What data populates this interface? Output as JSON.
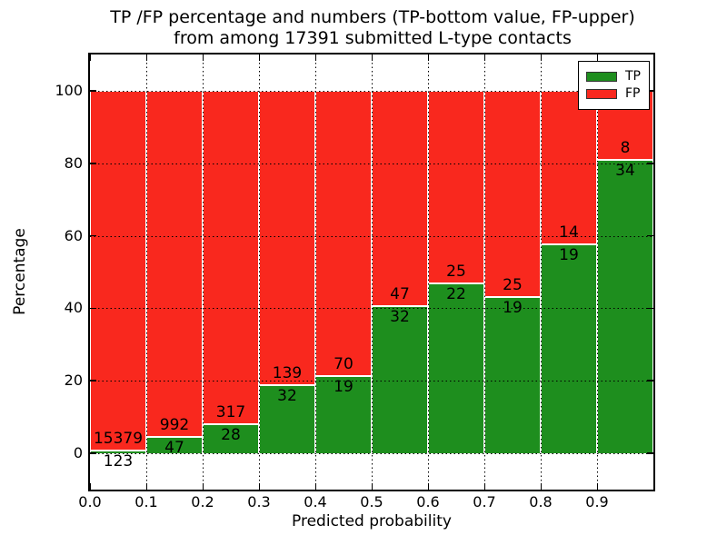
{
  "title": {
    "line1": "TP /FP percentage and numbers (TP-bottom value, FP-upper)",
    "line2": "from among 17391 submitted L-type contacts"
  },
  "axes": {
    "xlabel": "Predicted probability",
    "ylabel": "Percentage"
  },
  "legend": {
    "position": "upper right",
    "items": [
      {
        "label": "TP",
        "color": "#1e8e1e"
      },
      {
        "label": "FP",
        "color": "#f9281e"
      }
    ]
  },
  "chart_data": {
    "type": "bar",
    "stacked": true,
    "normalized_to_percent": true,
    "title": "TP /FP percentage and numbers (TP-bottom value, FP-upper) from among 17391 submitted L-type contacts",
    "xlabel": "Predicted probability",
    "ylabel": "Percentage",
    "total_contacts": 17391,
    "xlim": [
      0.0,
      1.0
    ],
    "ylim": [
      -10,
      110
    ],
    "grid": true,
    "grid_style": "dotted",
    "x_ticks": [
      "0.0",
      "0.1",
      "0.2",
      "0.3",
      "0.4",
      "0.5",
      "0.6",
      "0.7",
      "0.8",
      "0.9"
    ],
    "y_ticks": [
      "0",
      "20",
      "40",
      "60",
      "80",
      "100"
    ],
    "bin_edges": [
      0.0,
      0.1,
      0.2,
      0.3,
      0.4,
      0.5,
      0.6,
      0.7,
      0.8,
      0.9,
      1.0
    ],
    "series": [
      {
        "name": "TP",
        "color": "#1e8e1e",
        "counts": [
          123,
          47,
          28,
          32,
          19,
          32,
          22,
          19,
          19,
          34
        ]
      },
      {
        "name": "FP",
        "color": "#f9281e",
        "counts": [
          15379,
          992,
          317,
          139,
          70,
          47,
          25,
          25,
          14,
          8
        ]
      }
    ],
    "tp_percent": [
      0.79,
      4.52,
      8.12,
      18.71,
      21.35,
      40.51,
      46.81,
      43.18,
      57.58,
      80.95
    ],
    "fp_percent": [
      99.21,
      95.48,
      91.88,
      81.29,
      78.65,
      59.49,
      53.19,
      56.82,
      42.42,
      19.05
    ]
  }
}
